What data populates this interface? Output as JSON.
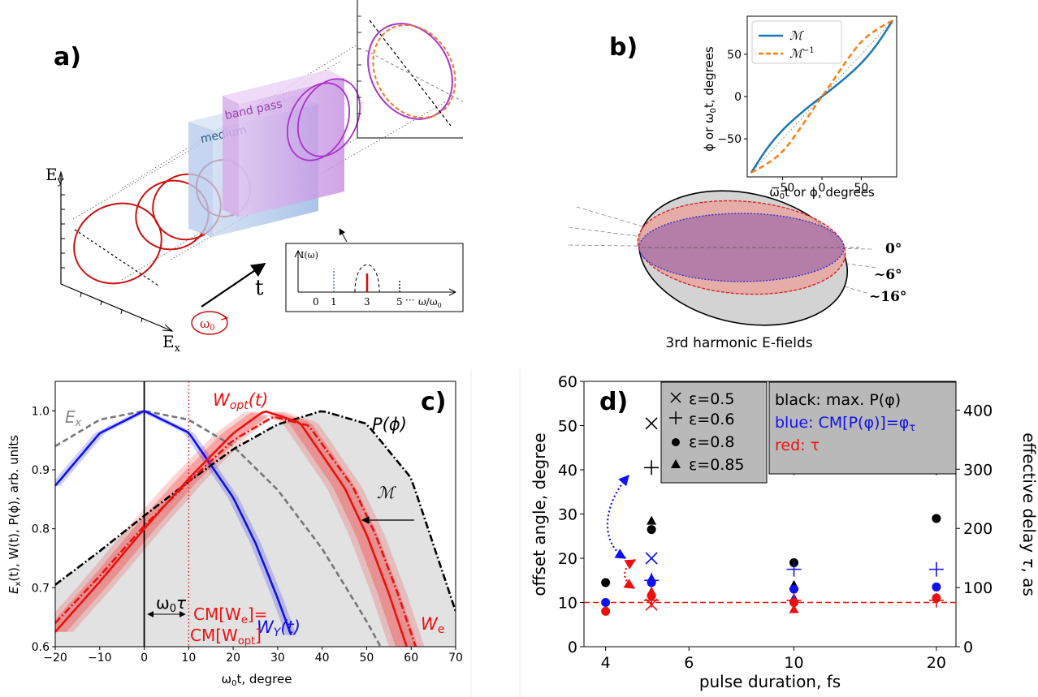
{
  "panel_a": {
    "letter": "a)",
    "ey_label": "E",
    "ey_sub": "y",
    "ex_label": "E",
    "ex_sub": "x",
    "t_label": "t",
    "omega_label": "ω",
    "omega_sub": "0",
    "medium_label": "medium",
    "bandpass_label": "band pass",
    "inset": {
      "ylabel": "I(ω)",
      "ticks": [
        "0",
        "1",
        "3",
        "5",
        "···",
        "ω/ω"
      ],
      "tick_sub": "0"
    }
  },
  "panel_b": {
    "letter": "b)",
    "ellipse_caption": "3rd harmonic E-fields",
    "angle_labels": [
      "0°",
      "~6°",
      "~16°"
    ],
    "colors": {
      "M": "#1f77b4",
      "Minv": "#ff7f0e",
      "ellipse_red": "#e02020",
      "ellipse_blue": "#3030d0"
    }
  },
  "panel_c": {
    "letter": "c)",
    "annot": {
      "ex": "E",
      "ex_sub": "x",
      "wopt": "W",
      "wopt_sub": "opt",
      "wopt_arg": "(t)",
      "pphi": "P(ϕ)",
      "M": "ℳ",
      "wy": "W",
      "wy_sub": "Y",
      "wy_arg": "(t)",
      "we": "W",
      "we_sub": "e",
      "w0tau": "ω",
      "w0tau_sub": "0",
      "w0tau_tau": "τ",
      "cm_line1": "CM[W",
      "cm_line1_sub": "e",
      "cm_line1_end": "]=",
      "cm_line2": "CM[W",
      "cm_line2_sub": "opt",
      "cm_line2_end": "]"
    }
  },
  "panel_d": {
    "letter": "d)",
    "legend_left": [
      "ε=0.5",
      "ε=0.6",
      "ε=0.8",
      "ε=0.85"
    ],
    "legend_right": [
      "black: max. P(φ)",
      "blue: CM[P(φ)]=φ",
      "red: τ"
    ],
    "legend_right_sub": "τ",
    "colors": {
      "black": "#000000",
      "blue": "#1010ee",
      "red": "#ee1010"
    }
  },
  "chart_data": [
    {
      "id": "b",
      "type": "line",
      "xlabel": "ω₀t or ϕ, degrees",
      "ylabel": "ϕ or ω₀t, degrees",
      "xlim": [
        -95,
        95
      ],
      "ylim": [
        -95,
        95
      ],
      "xticks": [
        -50,
        0,
        50
      ],
      "yticks": [
        -50,
        0,
        50
      ],
      "legend_position": "top-left",
      "series": [
        {
          "name": "ℳ",
          "style": "solid",
          "color": "#1f77b4",
          "x": [
            -90,
            -70,
            -50,
            -30,
            -10,
            0,
            10,
            30,
            50,
            70,
            90
          ],
          "y": [
            -90,
            -61,
            -39,
            -22,
            -7,
            0,
            7,
            22,
            39,
            61,
            90
          ]
        },
        {
          "name": "ℳ⁻¹",
          "style": "dashed",
          "color": "#ff7f0e",
          "x": [
            -90,
            -70,
            -50,
            -30,
            -10,
            0,
            10,
            30,
            50,
            70,
            90
          ],
          "y": [
            -90,
            -80,
            -66,
            -41,
            -13,
            0,
            13,
            41,
            66,
            80,
            90
          ]
        },
        {
          "style": "dotted",
          "color": "#777777",
          "x": [
            -90,
            90
          ],
          "y": [
            -90,
            90
          ]
        }
      ]
    },
    {
      "id": "c",
      "type": "line",
      "xlabel": "ω₀t, degree",
      "ylabel": "Eₓ(t), W(t), P(ϕ), arb. units",
      "xlim": [
        -20,
        70
      ],
      "ylim": [
        0.6,
        1.05
      ],
      "xticks": [
        -20,
        -10,
        0,
        10,
        20,
        30,
        40,
        50,
        60,
        70
      ],
      "yticks": [
        0.6,
        0.7,
        0.8,
        0.9,
        1.0
      ],
      "vlines": [
        {
          "x": 0,
          "color": "#000000",
          "style": "solid"
        },
        {
          "x": 10,
          "color": "#ee1010",
          "style": "dotted"
        }
      ],
      "series": [
        {
          "name": "Eₓ",
          "style": "dashed",
          "color": "#777777",
          "x": [
            -20,
            -10,
            0,
            10,
            20,
            30,
            40,
            50,
            54
          ],
          "y": [
            0.94,
            0.985,
            1.0,
            0.985,
            0.94,
            0.866,
            0.766,
            0.643,
            0.588
          ]
        },
        {
          "name": "W_Y(t)",
          "style": "solid",
          "color": "#1010ee",
          "x": [
            -20,
            -10,
            0,
            10,
            20,
            25,
            30,
            33
          ],
          "y": [
            0.873,
            0.962,
            1.0,
            0.963,
            0.853,
            0.776,
            0.682,
            0.62
          ]
        },
        {
          "name": "P(ϕ)",
          "style": "dashdot",
          "color": "#000000",
          "x": [
            -20,
            -10,
            0,
            10,
            20,
            30,
            40,
            50,
            60,
            70
          ],
          "y": [
            0.705,
            0.762,
            0.822,
            0.88,
            0.935,
            0.977,
            1.0,
            0.978,
            0.886,
            0.66
          ]
        },
        {
          "name": "W_opt(t)",
          "style": "solid",
          "color": "#ee1010",
          "x": [
            -20,
            -10,
            0,
            10,
            20,
            27,
            35,
            45,
            50,
            55,
            59
          ],
          "y": [
            0.625,
            0.71,
            0.8,
            0.885,
            0.962,
            1.0,
            0.98,
            0.87,
            0.79,
            0.69,
            0.6
          ]
        },
        {
          "name": "W_e",
          "style": "dashdot",
          "color": "#ee1010",
          "x": [
            -20,
            -10,
            0,
            10,
            20,
            29,
            37,
            47,
            52,
            57,
            61
          ],
          "y": [
            0.64,
            0.72,
            0.805,
            0.88,
            0.95,
            0.99,
            0.975,
            0.87,
            0.79,
            0.69,
            0.6
          ]
        }
      ]
    },
    {
      "id": "d",
      "type": "scatter",
      "xlabel": "pulse duration, fs",
      "ylabel": "offset angle, degree",
      "ylabel_right": "effective delay τ, as",
      "x_scale": "log",
      "xlim": [
        3.6,
        22
      ],
      "ylim": [
        0,
        60
      ],
      "xticks": [
        4,
        6,
        10,
        20
      ],
      "yticks": [
        0,
        10,
        20,
        30,
        40,
        50,
        60
      ],
      "yticks_right": [
        0,
        100,
        200,
        300,
        400
      ],
      "hline": {
        "y": 10,
        "color": "#ee1010",
        "style": "dashed"
      },
      "points": [
        {
          "x": 4,
          "y": 14.5,
          "marker": "circle",
          "color": "black"
        },
        {
          "x": 4,
          "y": 10,
          "marker": "circle",
          "color": "blue"
        },
        {
          "x": 4,
          "y": 8,
          "marker": "circle",
          "color": "red"
        },
        {
          "x": 5,
          "y": 50.5,
          "marker": "x",
          "color": "black"
        },
        {
          "x": 5,
          "y": 40.5,
          "marker": "plus",
          "color": "black"
        },
        {
          "x": 5,
          "y": 28.5,
          "marker": "triangle",
          "color": "black"
        },
        {
          "x": 5,
          "y": 26.5,
          "marker": "circle",
          "color": "black"
        },
        {
          "x": 5,
          "y": 20,
          "marker": "x",
          "color": "blue"
        },
        {
          "x": 5,
          "y": 15.5,
          "marker": "triangle",
          "color": "blue"
        },
        {
          "x": 5,
          "y": 15,
          "marker": "plus",
          "color": "blue"
        },
        {
          "x": 5,
          "y": 14.5,
          "marker": "circle",
          "color": "blue"
        },
        {
          "x": 5,
          "y": 12.5,
          "marker": "triangle",
          "color": "red"
        },
        {
          "x": 5,
          "y": 11.5,
          "marker": "circle",
          "color": "red"
        },
        {
          "x": 5,
          "y": 10.5,
          "marker": "plus",
          "color": "red"
        },
        {
          "x": 5,
          "y": 9.5,
          "marker": "x",
          "color": "red"
        },
        {
          "x": 10,
          "y": 40.5,
          "marker": "plus",
          "color": "black"
        },
        {
          "x": 10,
          "y": 19,
          "marker": "circle",
          "color": "black"
        },
        {
          "x": 10,
          "y": 17.5,
          "marker": "plus",
          "color": "blue"
        },
        {
          "x": 10,
          "y": 14,
          "marker": "triangle",
          "color": "black"
        },
        {
          "x": 10,
          "y": 13,
          "marker": "circle",
          "color": "blue"
        },
        {
          "x": 10,
          "y": 11,
          "marker": "triangle",
          "color": "blue"
        },
        {
          "x": 10,
          "y": 10.5,
          "marker": "plus",
          "color": "red"
        },
        {
          "x": 10,
          "y": 10,
          "marker": "circle",
          "color": "red"
        },
        {
          "x": 10,
          "y": 8.5,
          "marker": "triangle",
          "color": "red"
        },
        {
          "x": 20,
          "y": 40.5,
          "marker": "plus",
          "color": "black"
        },
        {
          "x": 20,
          "y": 29,
          "marker": "circle",
          "color": "black"
        },
        {
          "x": 20,
          "y": 17.5,
          "marker": "plus",
          "color": "blue"
        },
        {
          "x": 20,
          "y": 13.5,
          "marker": "circle",
          "color": "blue"
        },
        {
          "x": 20,
          "y": 11,
          "marker": "circle",
          "color": "red"
        },
        {
          "x": 20,
          "y": 10.5,
          "marker": "plus",
          "color": "red"
        }
      ]
    }
  ]
}
